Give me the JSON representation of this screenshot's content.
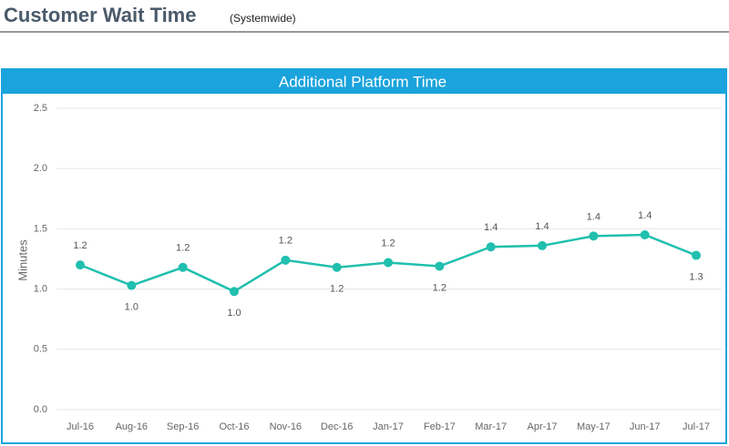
{
  "header": {
    "title": "Customer Wait Time",
    "subtitle": "(Systemwide)"
  },
  "chart_data": {
    "type": "line",
    "title": "Additional Platform Time",
    "y_label": "Minutes",
    "categories": [
      "Jul-16",
      "Aug-16",
      "Sep-16",
      "Oct-16",
      "Nov-16",
      "Dec-16",
      "Jan-17",
      "Feb-17",
      "Mar-17",
      "Apr-17",
      "May-17",
      "Jun-17",
      "Jul-17"
    ],
    "values": [
      1.2,
      1.03,
      1.18,
      0.98,
      1.24,
      1.18,
      1.22,
      1.19,
      1.35,
      1.36,
      1.44,
      1.45,
      1.28
    ],
    "value_labels": [
      "1.2",
      "1.0",
      "1.2",
      "1.0",
      "1.2",
      "1.2",
      "1.2",
      "1.2",
      "1.4",
      "1.4",
      "1.4",
      "1.4",
      "1.3"
    ],
    "color": "#20bfae",
    "ylim": [
      0,
      2.5
    ],
    "yticks": [
      {
        "value": 0,
        "label": "0.0"
      },
      0.5,
      {
        "value": 1,
        "label": "1.0"
      },
      1.5,
      {
        "value": 2,
        "label": "2.0"
      },
      2.5
    ],
    "grid": true
  }
}
